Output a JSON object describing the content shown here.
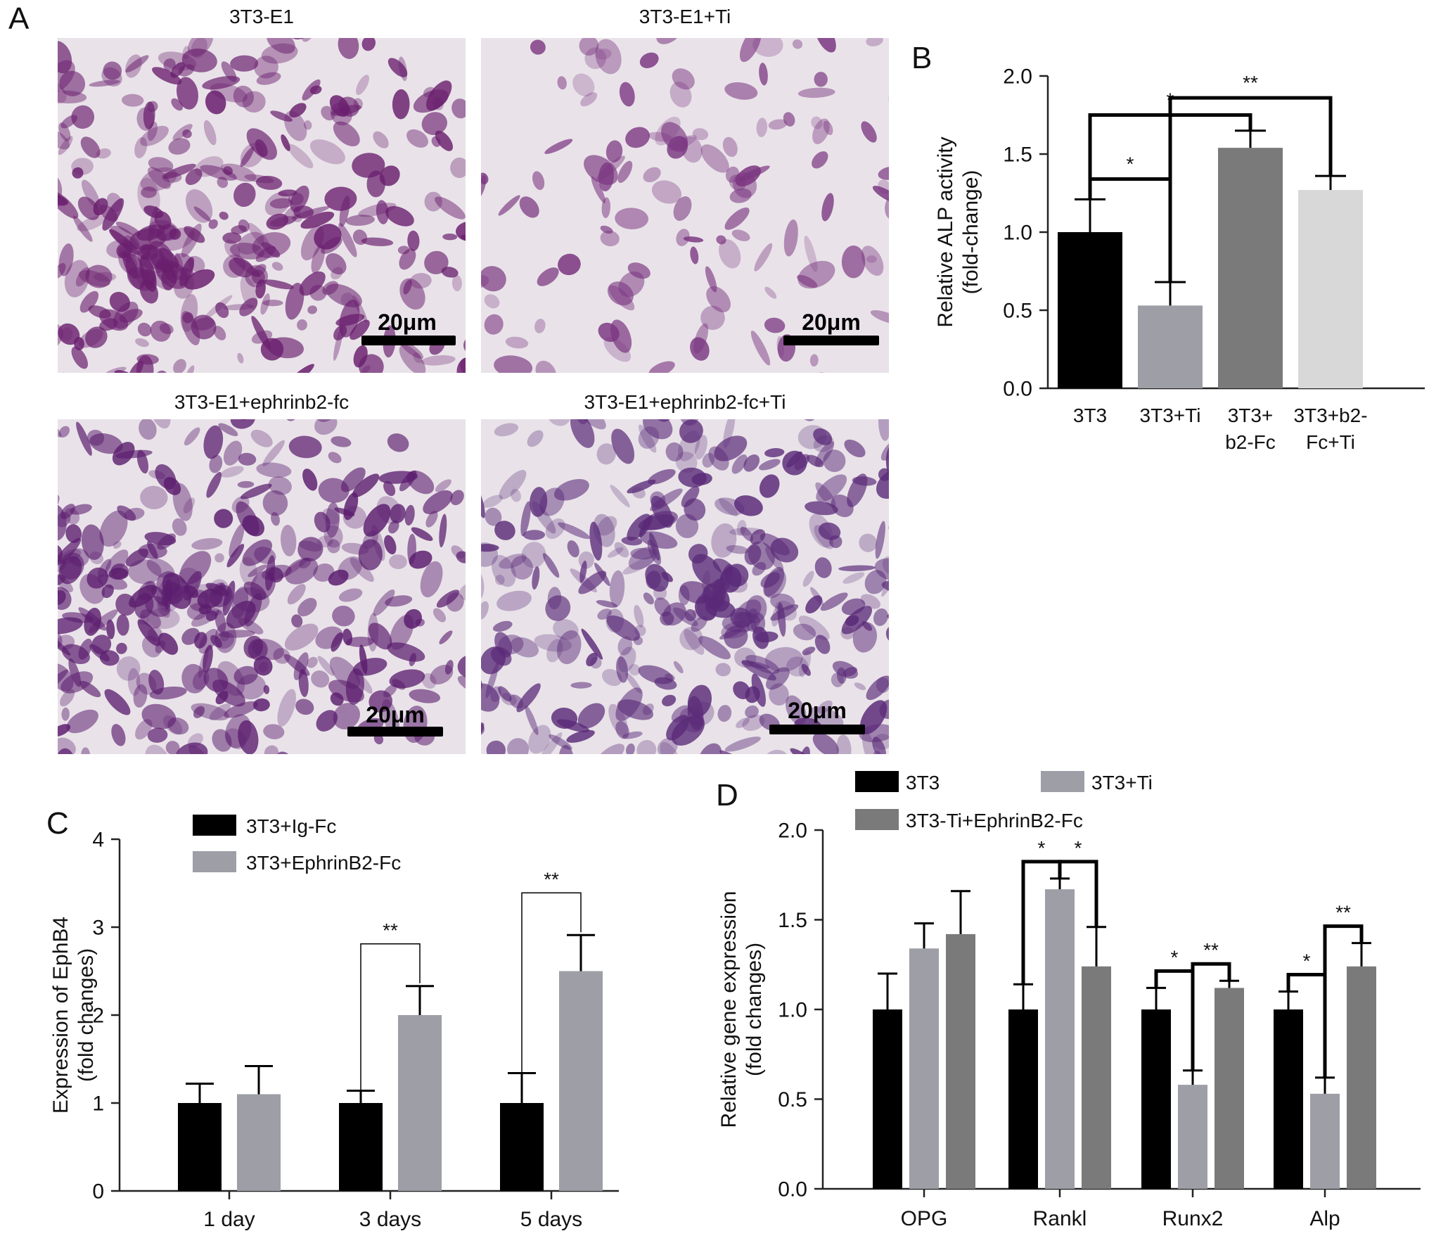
{
  "panels": {
    "a": "A",
    "b": "B",
    "c": "C",
    "d": "D"
  },
  "micrographs": [
    {
      "title": "3T3-E1",
      "scale_label": "20μm",
      "stain_color": "#6a1f6e"
    },
    {
      "title": "3T3-E1+Ti",
      "scale_label": "20μm",
      "stain_color": "#7a3580"
    },
    {
      "title": "3T3-E1+ephrinb2-fc",
      "scale_label": "20μm",
      "stain_color": "#5b1d6e"
    },
    {
      "title": "3T3-E1+ephrinb2-fc+Ti",
      "scale_label": "20μm",
      "stain_color": "#5a2a78"
    }
  ],
  "chart_data": [
    {
      "panel": "B",
      "type": "bar",
      "categories": [
        [
          "3T3"
        ],
        [
          "3T3+Ti"
        ],
        [
          "3T3+",
          "b2-Fc"
        ],
        [
          "3T3+b2-",
          "Fc+Ti"
        ]
      ],
      "values": [
        1.0,
        0.53,
        1.54,
        1.27
      ],
      "errors": [
        0.21,
        0.15,
        0.11,
        0.09
      ],
      "colors": [
        "#000000",
        "#9d9ea6",
        "#7a7a7a",
        "#d8d8d8"
      ],
      "ylabel": [
        "Relative ALP activity",
        "(fold-change)"
      ],
      "ylim": [
        0,
        2.0
      ],
      "yticks": [
        "0.0",
        "0.5",
        "1.0",
        "1.5",
        "2.0"
      ],
      "significance": [
        {
          "from": 0,
          "to": 1,
          "label": "*"
        },
        {
          "from": 0,
          "to": 2,
          "label": "*"
        },
        {
          "from": 1,
          "to": 3,
          "label": "**"
        }
      ]
    },
    {
      "panel": "C",
      "type": "bar",
      "categories": [
        "1 day",
        "3 days",
        "5 days"
      ],
      "series": [
        {
          "name": "3T3+Ig-Fc",
          "color": "#000000",
          "values": [
            1.0,
            1.0,
            1.0
          ],
          "errors": [
            0.22,
            0.14,
            0.34
          ]
        },
        {
          "name": "3T3+EphrinB2-Fc",
          "color": "#9d9ea6",
          "values": [
            1.1,
            2.0,
            2.5
          ],
          "errors": [
            0.32,
            0.33,
            0.41
          ]
        }
      ],
      "ylabel": [
        "Expression of EphB4",
        "(fold changes)"
      ],
      "ylim": [
        0,
        4
      ],
      "yticks": [
        "0",
        "1",
        "2",
        "3",
        "4"
      ],
      "significance": [
        {
          "group": 1,
          "label": "**"
        },
        {
          "group": 2,
          "label": "**"
        }
      ]
    },
    {
      "panel": "D",
      "type": "bar",
      "categories": [
        "OPG",
        "Rankl",
        "Runx2",
        "Alp"
      ],
      "series": [
        {
          "name": "3T3",
          "color": "#000000",
          "values": [
            1.0,
            1.0,
            1.0,
            1.0
          ],
          "errors": [
            0.2,
            0.14,
            0.12,
            0.1
          ]
        },
        {
          "name": "3T3+Ti",
          "color": "#9d9ea6",
          "values": [
            1.34,
            1.67,
            0.58,
            0.53
          ],
          "errors": [
            0.14,
            0.06,
            0.08,
            0.09
          ]
        },
        {
          "name": "3T3-Ti+EphrinB2-Fc",
          "color": "#7a7a7a",
          "values": [
            1.42,
            1.24,
            1.12,
            1.24
          ],
          "errors": [
            0.24,
            0.22,
            0.04,
            0.13
          ]
        }
      ],
      "ylabel": [
        "Relative gene expression",
        "(fold changes)"
      ],
      "ylim": [
        0,
        2.0
      ],
      "yticks": [
        "0.0",
        "0.5",
        "1.0",
        "1.5",
        "2.0"
      ],
      "significance": [
        {
          "group": 1,
          "from": 0,
          "to": 1,
          "label": "*"
        },
        {
          "group": 1,
          "from": 1,
          "to": 2,
          "label": "*"
        },
        {
          "group": 2,
          "from": 0,
          "to": 1,
          "label": "*"
        },
        {
          "group": 2,
          "from": 1,
          "to": 2,
          "label": "**"
        },
        {
          "group": 3,
          "from": 0,
          "to": 1,
          "label": "*"
        },
        {
          "group": 3,
          "from": 1,
          "to": 2,
          "label": "**"
        }
      ]
    }
  ]
}
